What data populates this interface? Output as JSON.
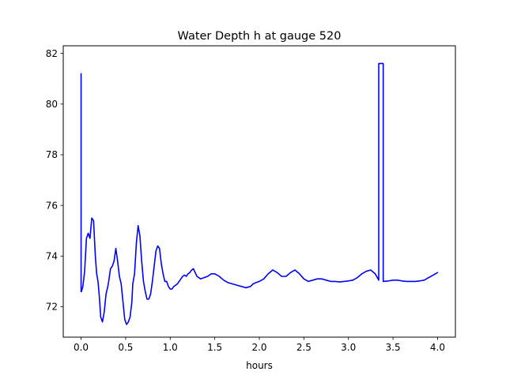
{
  "chart_data": {
    "type": "line",
    "title": "Water Depth h at gauge 520",
    "xlabel": "hours",
    "ylabel": "",
    "xlim": [
      -0.2,
      4.2
    ],
    "ylim": [
      70.8,
      82.3
    ],
    "xticks": [
      0.0,
      0.5,
      1.0,
      1.5,
      2.0,
      2.5,
      3.0,
      3.5,
      4.0
    ],
    "xtick_labels": [
      "0.0",
      "0.5",
      "1.0",
      "1.5",
      "2.0",
      "2.5",
      "3.0",
      "3.5",
      "4.0"
    ],
    "yticks": [
      72,
      74,
      76,
      78,
      80,
      82
    ],
    "ytick_labels": [
      "72",
      "74",
      "76",
      "78",
      "80",
      "82"
    ],
    "grid": false,
    "legend": "none",
    "series": [
      {
        "color": "#0000ff",
        "x": [
          0.0,
          0.0,
          0.005,
          0.005,
          0.02,
          0.04,
          0.06,
          0.08,
          0.1,
          0.12,
          0.14,
          0.16,
          0.175,
          0.19,
          0.205,
          0.22,
          0.24,
          0.26,
          0.28,
          0.3,
          0.31,
          0.33,
          0.35,
          0.37,
          0.39,
          0.41,
          0.43,
          0.45,
          0.47,
          0.49,
          0.51,
          0.53,
          0.55,
          0.57,
          0.58,
          0.6,
          0.62,
          0.64,
          0.66,
          0.68,
          0.7,
          0.72,
          0.74,
          0.76,
          0.78,
          0.8,
          0.82,
          0.84,
          0.86,
          0.88,
          0.9,
          0.92,
          0.94,
          0.96,
          0.98,
          1.0,
          1.02,
          1.04,
          1.06,
          1.08,
          1.1,
          1.12,
          1.14,
          1.16,
          1.18,
          1.2,
          1.22,
          1.24,
          1.26,
          1.28,
          1.3,
          1.34,
          1.38,
          1.42,
          1.46,
          1.5,
          1.55,
          1.6,
          1.65,
          1.7,
          1.75,
          1.8,
          1.85,
          1.9,
          1.93,
          1.96,
          2.0,
          2.05,
          2.1,
          2.15,
          2.2,
          2.25,
          2.3,
          2.35,
          2.4,
          2.45,
          2.5,
          2.55,
          2.6,
          2.65,
          2.7,
          2.75,
          2.8,
          2.85,
          2.9,
          2.95,
          3.0,
          3.05,
          3.1,
          3.15,
          3.2,
          3.25,
          3.3,
          3.34,
          3.34,
          3.39,
          3.39,
          3.45,
          3.5,
          3.55,
          3.6,
          3.65,
          3.7,
          3.75,
          3.8,
          3.85,
          3.9,
          3.95,
          4.0
        ],
        "y": [
          81.2,
          72.6,
          72.6,
          72.62,
          72.8,
          73.4,
          74.7,
          74.9,
          74.7,
          75.5,
          75.4,
          74.0,
          73.3,
          73.0,
          72.4,
          71.6,
          71.4,
          71.8,
          72.5,
          72.8,
          73.0,
          73.5,
          73.6,
          73.8,
          74.3,
          73.8,
          73.2,
          72.9,
          72.2,
          71.5,
          71.3,
          71.4,
          71.6,
          72.2,
          72.9,
          73.3,
          74.5,
          75.2,
          74.8,
          73.8,
          73.0,
          72.6,
          72.3,
          72.3,
          72.5,
          73.0,
          73.6,
          74.2,
          74.4,
          74.3,
          73.7,
          73.3,
          73.0,
          73.0,
          72.8,
          72.7,
          72.7,
          72.8,
          72.85,
          72.9,
          73.0,
          73.1,
          73.2,
          73.25,
          73.2,
          73.3,
          73.35,
          73.45,
          73.5,
          73.35,
          73.2,
          73.1,
          73.15,
          73.2,
          73.3,
          73.3,
          73.2,
          73.05,
          72.95,
          72.9,
          72.85,
          72.8,
          72.75,
          72.8,
          72.9,
          72.95,
          73.0,
          73.1,
          73.3,
          73.45,
          73.35,
          73.2,
          73.2,
          73.35,
          73.45,
          73.3,
          73.1,
          73.0,
          73.05,
          73.1,
          73.1,
          73.05,
          73.0,
          73.0,
          72.98,
          73.0,
          73.02,
          73.05,
          73.15,
          73.3,
          73.4,
          73.45,
          73.3,
          73.05,
          81.6,
          81.6,
          73.0,
          73.02,
          73.05,
          73.05,
          73.02,
          73.0,
          73.0,
          73.0,
          73.02,
          73.05,
          73.15,
          73.25,
          73.35
        ]
      }
    ]
  }
}
